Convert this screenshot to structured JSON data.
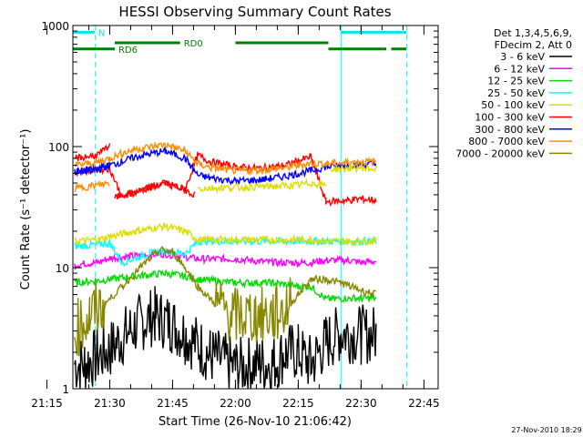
{
  "chart_data": {
    "type": "line",
    "title": "HESSI Observing Summary Count Rates",
    "xlabel": "Start Time (26-Nov-10 21:06:42)",
    "ylabel": "Count Rate (s⁻¹ detector⁻¹)",
    "y_scale": "log",
    "ylim": [
      1,
      1000
    ],
    "xlim_minutes": [
      21.2,
      48.4
    ],
    "x_ticks": [
      "21:15",
      "21:30",
      "21:45",
      "22:00",
      "22:15",
      "22:30",
      "22:45"
    ],
    "y_ticks": [
      "1",
      "10",
      "100",
      "1000"
    ],
    "legend_title": [
      "Det 1,3,4,5,6,9,",
      "FDecim 2, Att 0"
    ],
    "footer_timestamp": "27-Nov-2010 18:29",
    "grid": false,
    "legend_placement": "right",
    "vlines": [
      {
        "time": 21.35,
        "style": "solid",
        "color": "#00ffff"
      },
      {
        "time": 21.443,
        "style": "dashed",
        "color": "#00ffff"
      },
      {
        "time": 22.42,
        "style": "solid",
        "color": "#00ffff"
      },
      {
        "time": 22.682,
        "style": "dashed",
        "color": "#00ffff"
      }
    ],
    "flags": [
      {
        "label": "N",
        "color": "#00e5e5",
        "y": 880,
        "segments": [
          [
            21.2,
            21.44
          ],
          [
            22.42,
            22.68
          ]
        ]
      },
      {
        "label": "RD0",
        "color": "#007f00",
        "y": 720,
        "segments": [
          [
            21.52,
            21.78
          ],
          [
            22.0,
            22.37
          ]
        ]
      },
      {
        "label": "RD6",
        "color": "#007f00",
        "y": 640,
        "segments": [
          [
            21.2,
            21.52
          ],
          [
            22.37,
            22.6
          ],
          [
            22.62,
            22.68
          ]
        ]
      }
    ],
    "series": [
      {
        "name": "3 - 6 keV",
        "color": "#000000",
        "t": [
          21.36,
          21.4,
          21.5,
          21.56,
          21.62,
          21.68,
          21.74,
          21.8,
          21.9,
          22.0,
          22.1,
          22.15,
          22.2,
          22.25,
          22.3,
          22.36,
          22.42,
          22.5,
          22.56
        ],
        "values": [
          1.6,
          1.6,
          2.1,
          2.8,
          3.5,
          4.0,
          3.5,
          2.8,
          1.9,
          1.5,
          1.6,
          1.6,
          2.0,
          2.0,
          1.6,
          2.4,
          2.9,
          2.8,
          2.8
        ]
      },
      {
        "name": "6 - 12 keV",
        "color": "#ff00ff",
        "t": [
          21.36,
          21.4,
          21.45,
          21.5,
          21.6,
          21.72,
          21.8,
          21.85,
          22.0,
          22.15,
          22.25,
          22.3,
          22.36,
          22.45,
          22.5,
          22.56
        ],
        "values": [
          10.5,
          10.8,
          11.0,
          12.0,
          12.5,
          13.0,
          12.3,
          11.8,
          11.8,
          11.0,
          11.0,
          11.0,
          11.5,
          11.5,
          11.0,
          11.3
        ]
      },
      {
        "name": "12 - 25 keV",
        "color": "#00dd00",
        "t": [
          21.36,
          21.45,
          21.5,
          21.6,
          21.72,
          21.8,
          21.85,
          22.0,
          22.15,
          22.25,
          22.3,
          22.36,
          22.45,
          22.5,
          22.56
        ],
        "values": [
          7.5,
          7.8,
          8.0,
          8.5,
          9.0,
          8.5,
          8.0,
          7.5,
          7.5,
          7.0,
          7.0,
          5.5,
          5.6,
          5.6,
          5.6
        ]
      },
      {
        "name": "25 - 50 keV",
        "color": "#00ffff",
        "t": [
          21.36,
          21.45,
          21.5,
          21.55,
          21.65,
          21.72,
          21.8,
          21.85,
          22.0,
          22.15,
          22.25,
          22.3,
          22.36,
          22.45,
          22.5,
          22.56
        ],
        "values": [
          15,
          15.5,
          16,
          11,
          13,
          13.8,
          13,
          16.5,
          16.5,
          16.5,
          16.5,
          16.5,
          16.5,
          16.5,
          16.5,
          16.5
        ]
      },
      {
        "name": "50 - 100 keV",
        "color": "#dddd00",
        "t": [
          21.36,
          21.45,
          21.5,
          21.6,
          21.72,
          21.8,
          21.85,
          22.0,
          22.15,
          22.25,
          22.3,
          22.36,
          22.45,
          22.5,
          22.56
        ],
        "values": [
          16.5,
          17,
          18,
          20,
          22,
          20,
          17,
          17,
          17,
          17,
          17,
          16.5,
          16.5,
          16.5,
          16.5
        ]
      },
      {
        "name": "100 - 300 keV",
        "color": "#ff0000",
        "t": [
          21.36,
          21.45,
          21.5,
          21.55,
          21.6,
          21.72,
          21.8,
          21.85,
          21.9,
          22.0,
          22.1,
          22.2,
          22.25,
          22.3,
          22.36,
          22.45,
          22.5,
          22.56
        ],
        "values": [
          62,
          64,
          66,
          38,
          42,
          50,
          44,
          85,
          75,
          68,
          66,
          70,
          76,
          82,
          35,
          36,
          37,
          36
        ]
      },
      {
        "name": "300 - 800 keV",
        "color": "#0000ff",
        "t": [
          21.36,
          21.45,
          21.5,
          21.55,
          21.6,
          21.72,
          21.8,
          21.85,
          21.9,
          22.0,
          22.1,
          22.2,
          22.25,
          22.3,
          22.36,
          22.45,
          22.5,
          22.56
        ],
        "values": [
          62,
          65,
          70,
          75,
          82,
          92,
          80,
          58,
          55,
          52,
          53,
          57,
          60,
          63,
          68,
          70,
          71,
          72
        ]
      },
      {
        "name": "800 - 7000 keV",
        "color": "#ff8c00",
        "t": [
          21.36,
          21.45,
          21.5,
          21.55,
          21.6,
          21.72,
          21.8,
          21.85,
          21.9,
          22.0,
          22.1,
          22.2,
          22.25,
          22.3,
          22.36,
          22.45,
          22.5,
          22.56
        ],
        "values": [
          70,
          74,
          80,
          88,
          95,
          104,
          92,
          72,
          67,
          63,
          64,
          67,
          70,
          73,
          72,
          74,
          75,
          75
        ]
      },
      {
        "name": "7000 - 20000 keV",
        "color": "#888800",
        "t": [
          21.36,
          21.42,
          21.48,
          21.55,
          21.62,
          21.7,
          21.75,
          21.8,
          21.85,
          21.92,
          22.0,
          22.08,
          22.15,
          22.2,
          22.25,
          22.3,
          22.36,
          22.42,
          22.5,
          22.56
        ],
        "values": [
          3.0,
          4.0,
          5.0,
          7.0,
          10.0,
          14.0,
          13.5,
          10.0,
          7.0,
          5.0,
          4.0,
          4.0,
          4.0,
          4.5,
          6.0,
          8.0,
          8.0,
          7.5,
          6.5,
          6.0
        ]
      }
    ],
    "extra_segments": [
      {
        "series": "100 - 300 keV",
        "t": [
          21.36,
          21.45,
          21.5
        ],
        "values": [
          80,
          85,
          100
        ]
      },
      {
        "series": "300 - 800 keV",
        "t": [
          21.36,
          21.45,
          21.5
        ],
        "values": [
          62,
          65,
          70
        ]
      },
      {
        "series": "800 - 7000 keV",
        "t": [
          21.36,
          21.45,
          21.5
        ],
        "values": [
          45,
          48,
          50
        ]
      },
      {
        "series": "50 - 100 keV",
        "t": [
          21.85,
          22.0,
          22.15,
          22.25,
          22.3,
          22.36
        ],
        "values": [
          45,
          46,
          47,
          48,
          50,
          48
        ]
      },
      {
        "series": "50 - 100 keV",
        "t": [
          22.38,
          22.45,
          22.5,
          22.56
        ],
        "values": [
          65,
          66,
          67,
          65
        ]
      },
      {
        "series": "100 - 300 keV",
        "t": [
          21.52,
          21.6,
          21.72,
          21.8,
          21.84
        ],
        "values": [
          38,
          42,
          50,
          44,
          40
        ]
      }
    ]
  }
}
